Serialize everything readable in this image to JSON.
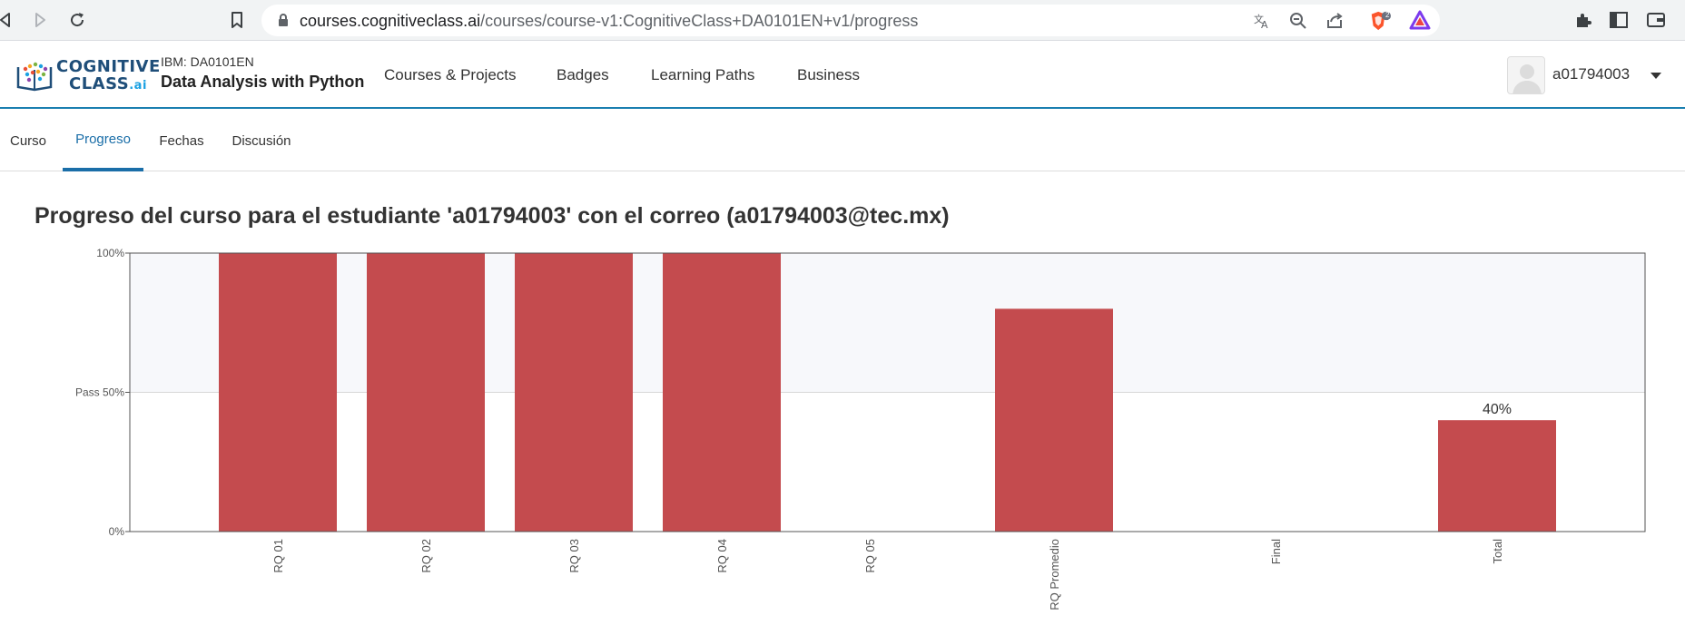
{
  "browser": {
    "url_host": "courses.cognitiveclass.ai",
    "url_path": "/courses/course-v1:CognitiveClass+DA0101EN+v1/progress",
    "shield_badge": "2",
    "icons": [
      "back-icon",
      "forward-icon",
      "reload-icon",
      "bookmark-icon",
      "lock-icon",
      "translate-icon",
      "zoom-out-icon",
      "share-icon",
      "brave-shield-icon",
      "brave-rewards-icon",
      "extensions-icon",
      "sidebar-icon",
      "wallet-icon"
    ]
  },
  "header": {
    "logo_line1": "COGNITIVE",
    "logo_line2": "CLASS",
    "logo_suffix": ".ai",
    "course_org": "IBM: DA0101EN",
    "course_name": "Data Analysis with Python",
    "nav": [
      "Courses & Projects",
      "Badges",
      "Learning Paths",
      "Business"
    ],
    "username": "a01794003"
  },
  "tabs": [
    {
      "label": "Curso",
      "active": false
    },
    {
      "label": "Progreso",
      "active": true
    },
    {
      "label": "Fechas",
      "active": false
    },
    {
      "label": "Discusión",
      "active": false
    }
  ],
  "page_title": "Progreso del curso para el estudiante 'a01794003' con el correo (a01794003@tec.mx)",
  "chart_data": {
    "type": "bar",
    "title": "",
    "xlabel": "",
    "ylabel": "",
    "ylim": [
      0,
      100
    ],
    "y_ticks": [
      {
        "value": 100,
        "label": "100%"
      },
      {
        "value": 50,
        "label": "Pass 50%"
      },
      {
        "value": 0,
        "label": "0%"
      }
    ],
    "categories": [
      "RQ 01",
      "RQ 02",
      "RQ 03",
      "RQ 04",
      "RQ 05",
      "RQ Promedio",
      "Final",
      "Total"
    ],
    "values": [
      100,
      100,
      100,
      100,
      0,
      80,
      0,
      40
    ],
    "value_labels": [
      "",
      "",
      "",
      "",
      "",
      "",
      "",
      "40%"
    ],
    "bar_color": "#c44b4e",
    "pass_band_color": "#f7f8fb",
    "grid": false,
    "legend": "none"
  }
}
